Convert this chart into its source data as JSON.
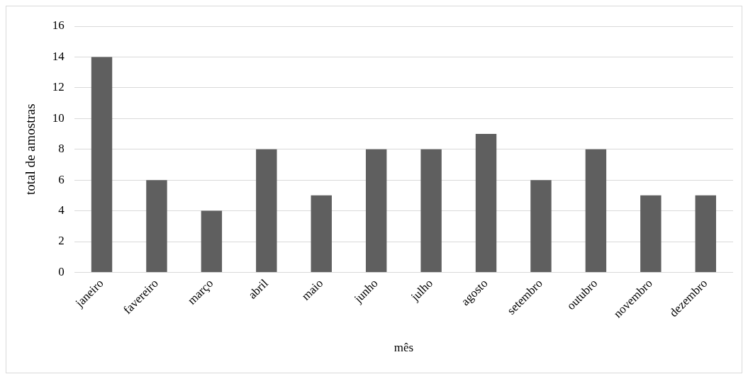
{
  "chart_data": {
    "type": "bar",
    "xlabel": "mês",
    "ylabel": "total de amostras",
    "categories": [
      "janeiro",
      "favereiro",
      "março",
      "abril",
      "maio",
      "junho",
      "julho",
      "agosto",
      "setembro",
      "outubro",
      "novembro",
      "dezembro"
    ],
    "values": [
      14,
      6,
      4,
      8,
      5,
      8,
      8,
      9,
      6,
      8,
      5,
      5
    ],
    "color": "#5f5f5f",
    "ylim": [
      0,
      16
    ],
    "yticks": [
      0,
      2,
      4,
      6,
      8,
      10,
      12,
      14,
      16
    ],
    "grid": "y",
    "legend": false
  }
}
